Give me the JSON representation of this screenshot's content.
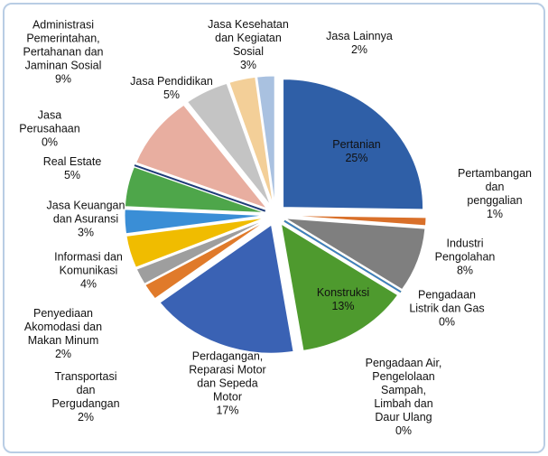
{
  "chart_data": {
    "type": "pie",
    "categories": [
      "Pertanian",
      "Pertambangan\ndan penggalian",
      "Industri\nPengolahan",
      "Pengadaan\nListrik dan Gas",
      "Pengadaan Air,\nPengelolaan\nSampah,\nLimbah dan\nDaur Ulang",
      "Konstruksi",
      "Perdagangan,\nReparasi Motor\ndan Sepeda\nMotor",
      "Transportasi\ndan\nPergudangan",
      "Penyediaan\nAkomodasi dan\nMakan Minum",
      "Informasi dan\nKomunikasi",
      "Jasa Keuangan\ndan Asuransi",
      "Real Estate",
      "Jasa\nPerusahaan",
      "Administrasi\nPemerintahan,\nPertahanan dan\nJaminan Sosial",
      "Jasa Pendidikan",
      "Jasa Kesehatan\ndan Kegiatan\nSosial",
      "Jasa Lainnya"
    ],
    "values": [
      25,
      1,
      8,
      0,
      0,
      13,
      17,
      2,
      2,
      4,
      3,
      5,
      0,
      9,
      5,
      3,
      2
    ],
    "value_labels": [
      "25%",
      "1%",
      "8%",
      "0%",
      "0%",
      "13%",
      "17%",
      "2%",
      "2%",
      "4%",
      "3%",
      "5%",
      "0%",
      "9%",
      "5%",
      "3%",
      "2%"
    ],
    "colors": [
      "#2f5fa7",
      "#d9702a",
      "#7f7f7f",
      "#f2c200",
      "#3b7fc4",
      "#4e9a2e",
      "#3a62b4",
      "#e07a2a",
      "#9e9e9e",
      "#f0bc00",
      "#3a8ed6",
      "#4ea64a",
      "#1f3c78",
      "#e8aea0",
      "#c4c4c4",
      "#f3cf98",
      "#a9c1e0"
    ]
  }
}
